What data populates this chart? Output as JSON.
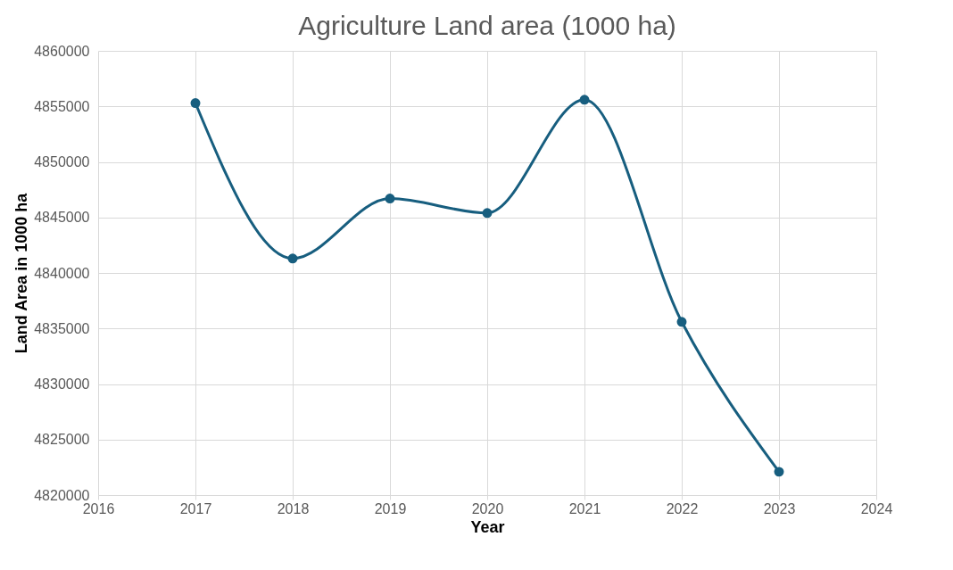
{
  "chart_data": {
    "type": "line",
    "title": "Agriculture Land area (1000 ha)",
    "xlabel": "Year",
    "ylabel": "Land Area in 1000 ha",
    "x": [
      2017,
      2018,
      2019,
      2020,
      2021,
      2022,
      2023
    ],
    "series": [
      {
        "color": "#175e7f",
        "values": [
          4855300,
          4841300,
          4846700,
          4845400,
          4855600,
          4835600,
          4822100
        ]
      }
    ],
    "xlim": [
      2016,
      2024
    ],
    "xticks": [
      2016,
      2017,
      2018,
      2019,
      2020,
      2021,
      2022,
      2023,
      2024
    ],
    "ylim": [
      4820000,
      4860000
    ],
    "yticks": [
      4820000,
      4825000,
      4830000,
      4835000,
      4840000,
      4845000,
      4850000,
      4855000,
      4860000
    ],
    "grid": true,
    "marker": "circle",
    "line_style": "solid"
  }
}
